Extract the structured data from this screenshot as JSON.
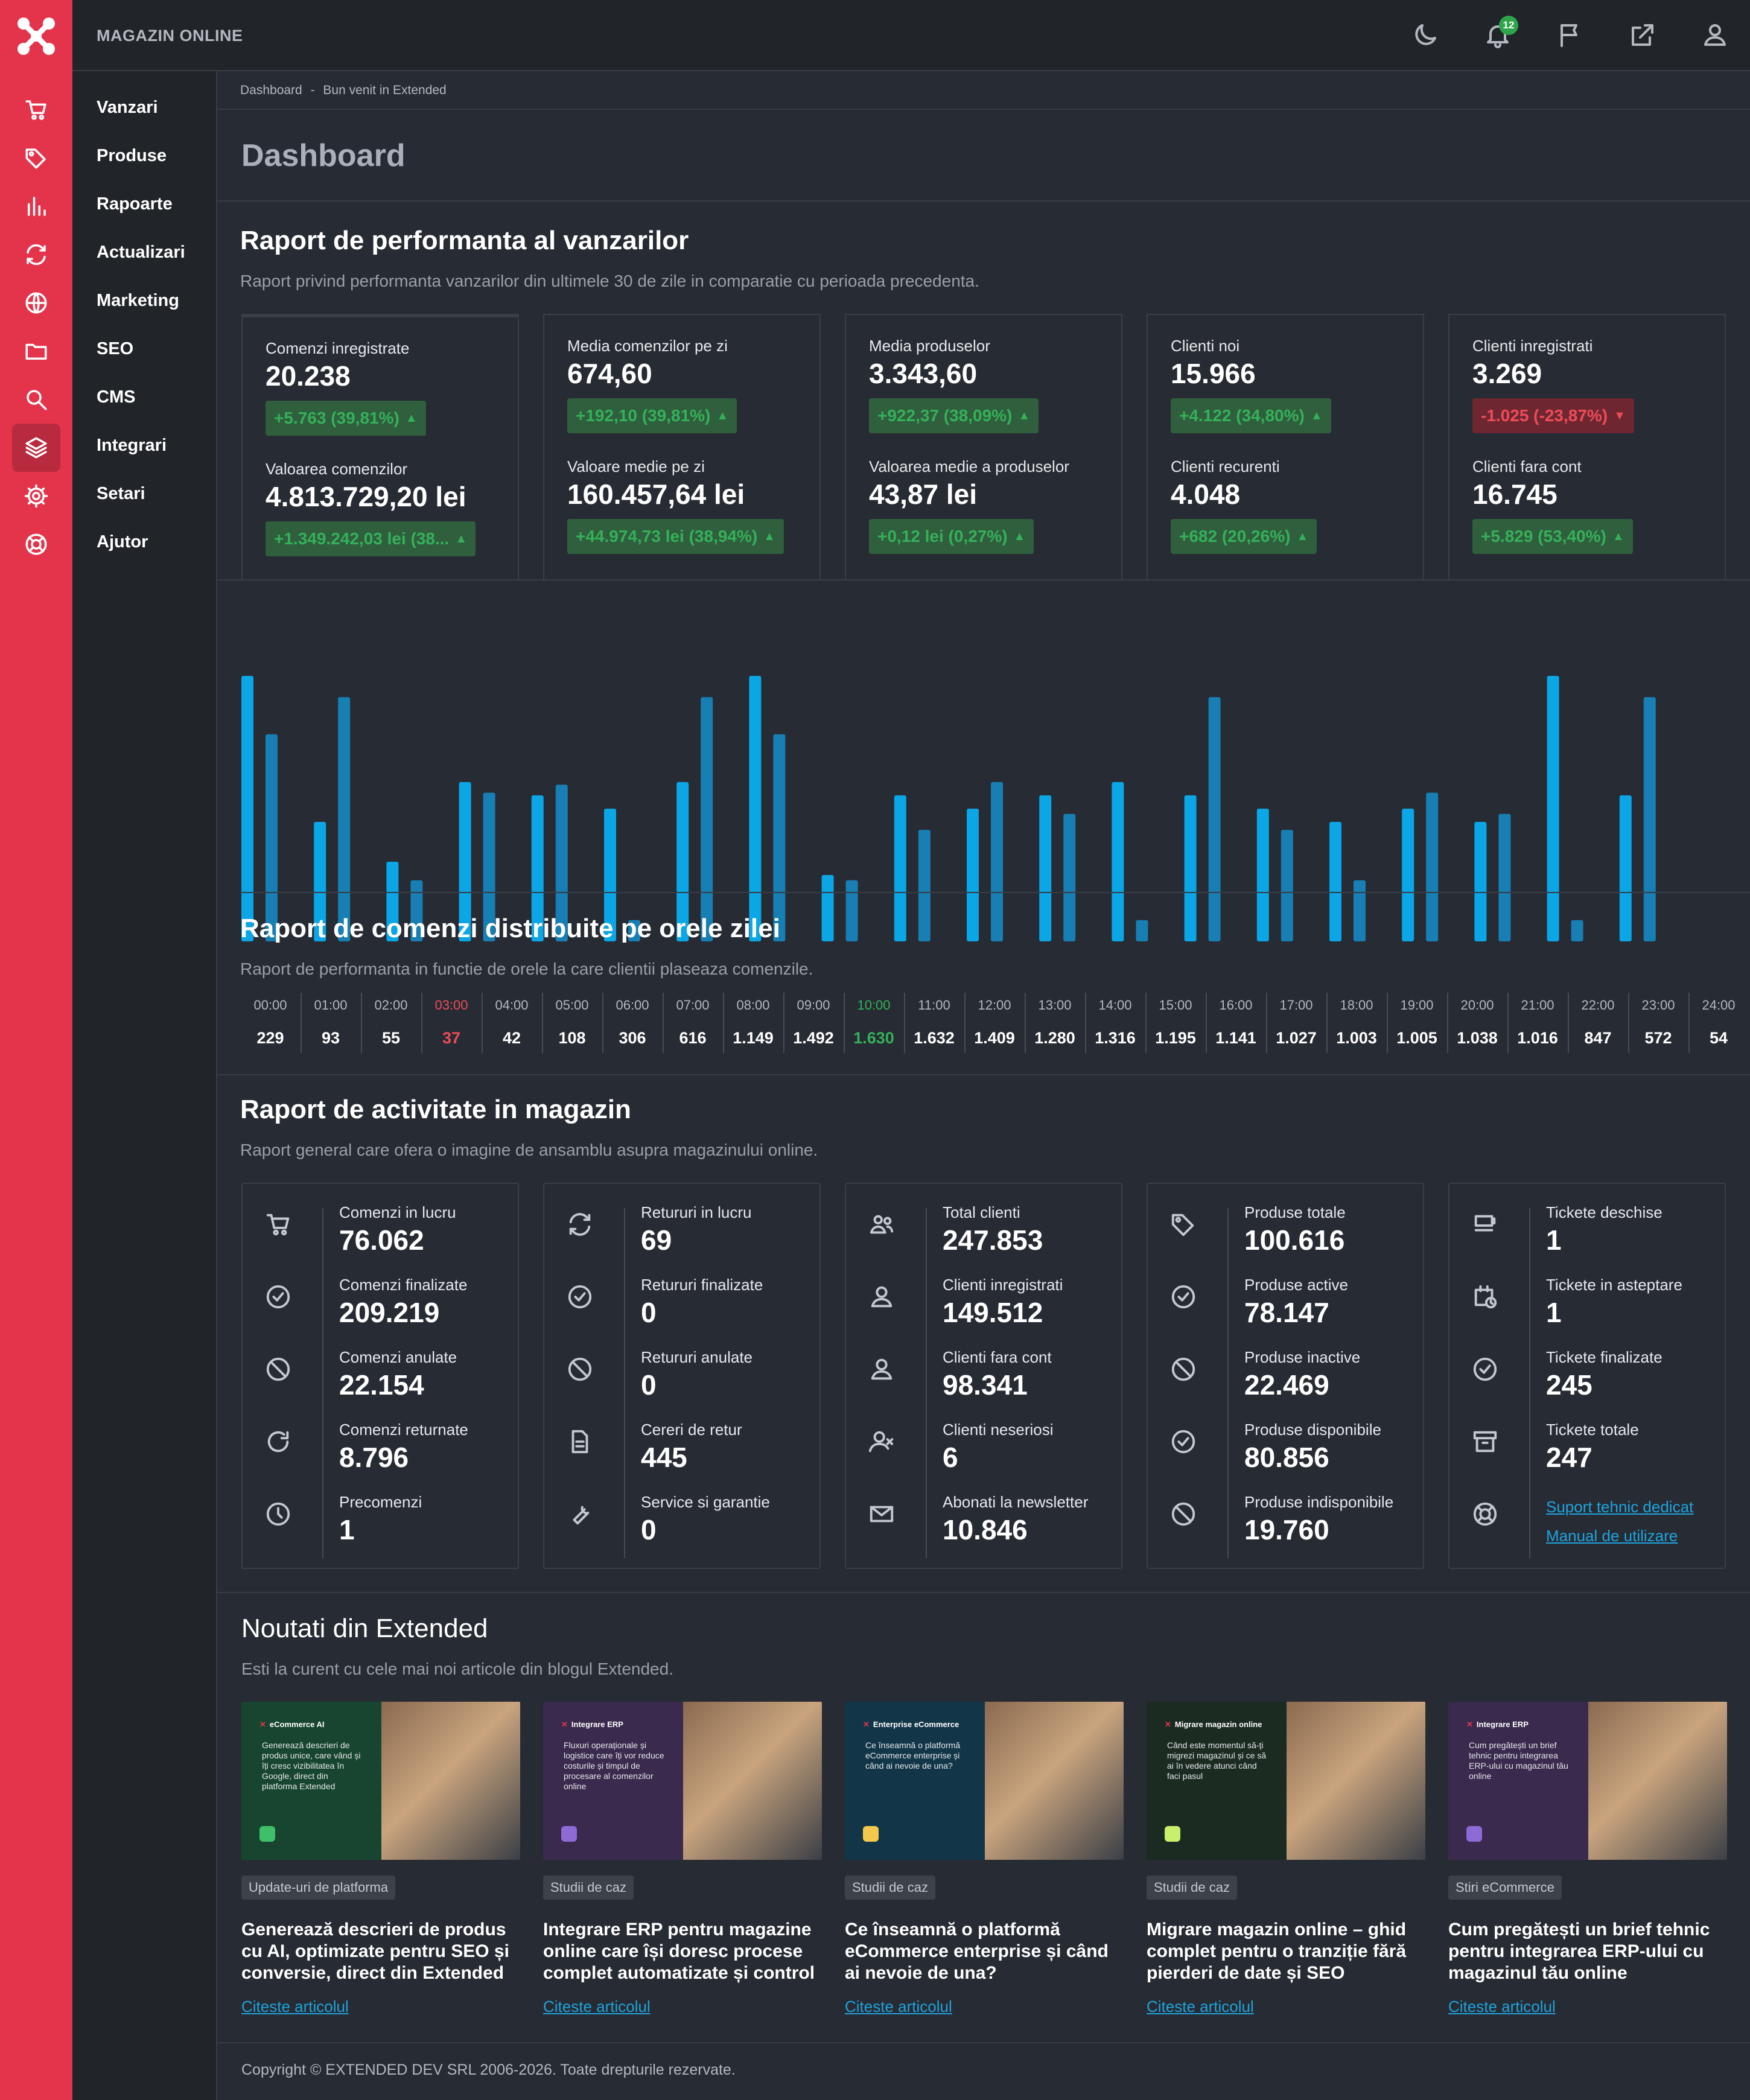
{
  "app": {
    "brand": "MAGAZIN ONLINE",
    "notifications": "12"
  },
  "menu": [
    "Vanzari",
    "Produse",
    "Rapoarte",
    "Actualizari",
    "Marketing",
    "SEO",
    "CMS",
    "Integrari",
    "Setari",
    "Ajutor"
  ],
  "rail_icons": [
    "cart-icon",
    "tag-icon",
    "bar-chart-icon",
    "sync-icon",
    "globe-icon",
    "folder-icon",
    "search-icon",
    "layers-icon",
    "gear-icon",
    "lifebuoy-icon"
  ],
  "breadcrumb": {
    "home": "Dashboard",
    "sep": "-",
    "current": "Bun venit in Extended"
  },
  "page_title": "Dashboard",
  "perf": {
    "title": "Raport de performanta al vanzarilor",
    "subtitle": "Raport privind performanta vanzarilor din ultimele 30 de zile in comparatie cu perioada precedenta.",
    "cards": [
      {
        "l1": "Comenzi inregistrate",
        "v1": "20.238",
        "c1": "+5.763 (39,81%)",
        "d1": "up",
        "l2": "Valoarea comenzilor",
        "v2": "4.813.729,20 lei",
        "c2": "+1.349.242,03 lei (38...",
        "d2": "up"
      },
      {
        "l1": "Media comenzilor pe zi",
        "v1": "674,60",
        "c1": "+192,10 (39,81%)",
        "d1": "up",
        "l2": "Valoare medie pe zi",
        "v2": "160.457,64 lei",
        "c2": "+44.974,73 lei (38,94%)",
        "d2": "up"
      },
      {
        "l1": "Media produselor",
        "v1": "3.343,60",
        "c1": "+922,37 (38,09%)",
        "d1": "up",
        "l2": "Valoarea medie a produselor",
        "v2": "43,87 lei",
        "c2": "+0,12 lei (0,27%)",
        "d2": "up"
      },
      {
        "l1": "Clienti noi",
        "v1": "15.966",
        "c1": "+4.122 (34,80%)",
        "d1": "up",
        "l2": "Clienti recurenti",
        "v2": "4.048",
        "c2": "+682 (20,26%)",
        "d2": "up"
      },
      {
        "l1": "Clienti inregistrati",
        "v1": "3.269",
        "c1": "-1.025 (-23,87%)",
        "d1": "down",
        "l2": "Clienti fara cont",
        "v2": "16.745",
        "c2": "+5.829 (53,40%)",
        "d2": "up"
      }
    ]
  },
  "chart_data": {
    "type": "bar",
    "series": [
      {
        "values": [
          100,
          45,
          30,
          60,
          55,
          50,
          60,
          100,
          25,
          55,
          50,
          55,
          60,
          55,
          50,
          45,
          50,
          45,
          100,
          55
        ]
      },
      {
        "values": [
          78,
          92,
          23,
          56,
          59,
          8,
          92,
          78,
          23,
          42,
          60,
          48,
          8,
          92,
          42,
          23,
          56,
          48,
          8,
          92
        ]
      }
    ],
    "colors": [
      "#0aa6e6",
      "#177fb3"
    ]
  },
  "hourly": {
    "title": "Raport de comenzi distribuite pe orele zilei",
    "subtitle": "Raport de performanta in functie de orele la care clientii plaseaza comenzile.",
    "hours": [
      {
        "h": "00:00",
        "v": "229"
      },
      {
        "h": "01:00",
        "v": "93"
      },
      {
        "h": "02:00",
        "v": "55"
      },
      {
        "h": "03:00",
        "v": "37",
        "s": "red"
      },
      {
        "h": "04:00",
        "v": "42"
      },
      {
        "h": "05:00",
        "v": "108"
      },
      {
        "h": "06:00",
        "v": "306"
      },
      {
        "h": "07:00",
        "v": "616"
      },
      {
        "h": "08:00",
        "v": "1.149"
      },
      {
        "h": "09:00",
        "v": "1.492"
      },
      {
        "h": "10:00",
        "v": "1.630",
        "s": "grn"
      },
      {
        "h": "11:00",
        "v": "1.632"
      },
      {
        "h": "12:00",
        "v": "1.409"
      },
      {
        "h": "13:00",
        "v": "1.280"
      },
      {
        "h": "14:00",
        "v": "1.316"
      },
      {
        "h": "15:00",
        "v": "1.195"
      },
      {
        "h": "16:00",
        "v": "1.141"
      },
      {
        "h": "17:00",
        "v": "1.027"
      },
      {
        "h": "18:00",
        "v": "1.003"
      },
      {
        "h": "19:00",
        "v": "1.005"
      },
      {
        "h": "20:00",
        "v": "1.038"
      },
      {
        "h": "21:00",
        "v": "1.016"
      },
      {
        "h": "22:00",
        "v": "847"
      },
      {
        "h": "23:00",
        "v": "572"
      },
      {
        "h": "24:00",
        "v": "54"
      }
    ]
  },
  "activity": {
    "title": "Raport de activitate in magazin",
    "subtitle": "Raport general care ofera o imagine de ansamblu asupra magazinului online.",
    "cards": [
      [
        {
          "i": "cart",
          "l": "Comenzi in lucru",
          "v": "76.062"
        },
        {
          "i": "check",
          "l": "Comenzi finalizate",
          "v": "209.219"
        },
        {
          "i": "ban",
          "l": "Comenzi anulate",
          "v": "22.154"
        },
        {
          "i": "redo",
          "l": "Comenzi returnate",
          "v": "8.796"
        },
        {
          "i": "clock",
          "l": "Precomenzi",
          "v": "1"
        }
      ],
      [
        {
          "i": "sync",
          "l": "Retururi in lucru",
          "v": "69"
        },
        {
          "i": "check",
          "l": "Retururi finalizate",
          "v": "0"
        },
        {
          "i": "ban",
          "l": "Retururi anulate",
          "v": "0"
        },
        {
          "i": "doc",
          "l": "Cereri de retur",
          "v": "445"
        },
        {
          "i": "wrench",
          "l": "Service si garantie",
          "v": "0"
        }
      ],
      [
        {
          "i": "users",
          "l": "Total clienti",
          "v": "247.853"
        },
        {
          "i": "user",
          "l": "Clienti inregistrati",
          "v": "149.512"
        },
        {
          "i": "user",
          "l": "Clienti fara cont",
          "v": "98.341"
        },
        {
          "i": "userx",
          "l": "Clienti neseriosi",
          "v": "6"
        },
        {
          "i": "mail",
          "l": "Abonati la newsletter",
          "v": "10.846"
        }
      ],
      [
        {
          "i": "tag",
          "l": "Produse totale",
          "v": "100.616"
        },
        {
          "i": "check",
          "l": "Produse active",
          "v": "78.147"
        },
        {
          "i": "ban",
          "l": "Produse inactive",
          "v": "22.469"
        },
        {
          "i": "check",
          "l": "Produse disponibile",
          "v": "80.856"
        },
        {
          "i": "ban",
          "l": "Produse indisponibile",
          "v": "19.760"
        }
      ],
      [
        {
          "i": "ticket",
          "l": "Tickete deschise",
          "v": "1"
        },
        {
          "i": "calclock",
          "l": "Tickete in asteptare",
          "v": "1"
        },
        {
          "i": "check",
          "l": "Tickete finalizate",
          "v": "245"
        },
        {
          "i": "archive",
          "l": "Tickete totale",
          "v": "247"
        }
      ]
    ],
    "support_link": "Suport tehnic dedicat",
    "manual_link": "Manual de utilizare"
  },
  "news": {
    "title": "Noutati din Extended",
    "subtitle": "Esti la curent cu cele mai noi articole din blogul Extended.",
    "read_more": "Citeste articolul",
    "items": [
      {
        "tag": "Update-uri de platforma",
        "title": "Generează descrieri de produs cu AI, optimizate pentru SEO și conversie, direct din Extended",
        "img_label": "eCommerce AI",
        "img_text": "Generează descrieri de produs unice, care vând și îți cresc vizibilitatea în Google, direct din platforma Extended",
        "bg": "#17452f"
      },
      {
        "tag": "Studii de caz",
        "title": "Integrare ERP pentru magazine online care își doresc procese complet automatizate și control",
        "img_label": "Integrare ERP",
        "img_text": "Fluxuri operaționale și logistice care îți vor reduce costurile și timpul de procesare al comenzilor online",
        "bg": "#3a2a4d"
      },
      {
        "tag": "Studii de caz",
        "title": "Ce înseamnă o platformă eCommerce enterprise și când ai nevoie de una?",
        "img_label": "Enterprise eCommerce",
        "img_text": "Ce înseamnă o platformă eCommerce enterprise și când ai nevoie de una?",
        "bg": "#123548"
      },
      {
        "tag": "Studii de caz",
        "title": "Migrare magazin online – ghid complet pentru o tranziție fără pierderi de date și SEO",
        "img_label": "Migrare magazin online",
        "img_text": "Când este momentul să-ți migrezi magazinul și ce să ai în vedere atunci când faci pasul",
        "bg": "#1b2b22"
      },
      {
        "tag": "Stiri eCommerce",
        "title": "Cum pregătești un brief tehnic pentru integrarea ERP-ului cu magazinul tău online",
        "img_label": "Integrare ERP",
        "img_text": "Cum pregătești un brief tehnic pentru integrarea ERP-ului cu magazinul tău online",
        "bg": "#3a2a4d"
      }
    ]
  },
  "footer": "Copyright © EXTENDED DEV SRL 2006-2026. Toate drepturile rezervate."
}
